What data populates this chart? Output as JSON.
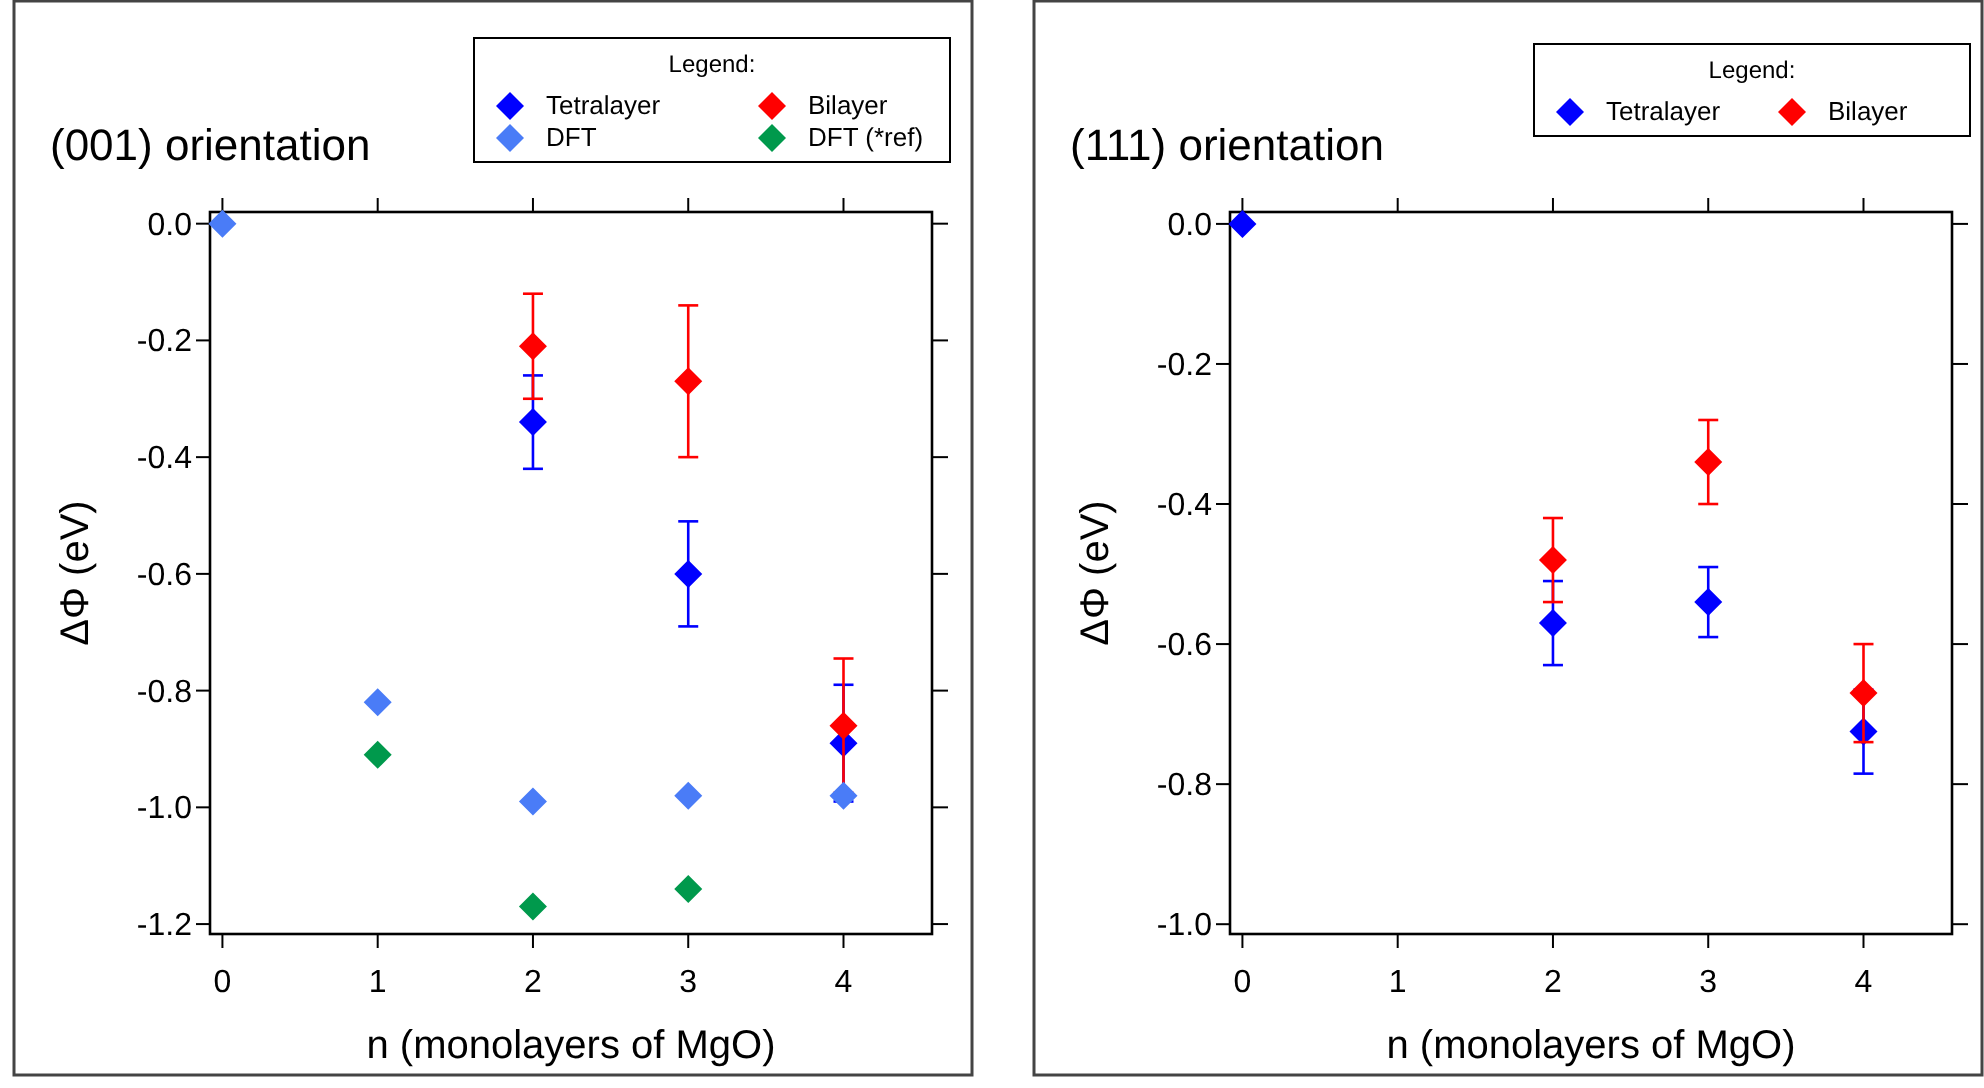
{
  "chart_data": [
    {
      "type": "scatter",
      "title": "(001) orientation",
      "xlabel": "n (monolayers of MgO)",
      "ylabel": "ΔΦ (eV)",
      "legend_title": "Legend:",
      "legend": "top right",
      "marker": "diamond",
      "grid": false,
      "xlim": [
        -0.08,
        4.57
      ],
      "xticks": [
        0,
        1,
        2,
        3,
        4
      ],
      "ylim": [
        -1.217,
        0.02
      ],
      "yticks": [
        {
          "value": 0,
          "label": "0.0"
        },
        {
          "value": -0.2,
          "label": "-0.2"
        },
        {
          "value": -0.4,
          "label": "-0.4"
        },
        {
          "value": -0.6,
          "label": "-0.6"
        },
        {
          "value": -0.8,
          "label": "-0.8"
        },
        {
          "value": -1.0,
          "label": "-1.0"
        },
        {
          "value": -1.2,
          "label": "-1.2"
        }
      ],
      "series": [
        {
          "name": "Tetralayer",
          "color": "#0000ff",
          "x": [
            2,
            3,
            4
          ],
          "values": [
            -0.34,
            -0.6,
            -0.89
          ],
          "errors": [
            0.08,
            0.09,
            0.1
          ]
        },
        {
          "name": "Bilayer",
          "color": "#ff0000",
          "x": [
            2,
            3,
            4
          ],
          "values": [
            -0.21,
            -0.27,
            -0.86
          ],
          "errors": [
            0.09,
            0.13,
            0.115
          ]
        },
        {
          "name": "DFT",
          "color": "#4a7cf7",
          "x": [
            0,
            1,
            2,
            3,
            4
          ],
          "values": [
            0.0,
            -0.82,
            -0.99,
            -0.98,
            -0.98
          ]
        },
        {
          "name": "DFT (*ref)",
          "color": "#00994c",
          "x": [
            1,
            2,
            3
          ],
          "values": [
            -0.91,
            -1.17,
            -1.14
          ]
        }
      ]
    },
    {
      "type": "scatter",
      "title": "(111) orientation",
      "xlabel": "n (monolayers of MgO)",
      "ylabel": "ΔΦ (eV)",
      "legend_title": "Legend:",
      "legend": "top right",
      "marker": "diamond",
      "grid": false,
      "xlim": [
        -0.08,
        4.57
      ],
      "xticks": [
        0,
        1,
        2,
        3,
        4
      ],
      "ylim": [
        -1.014,
        0.017
      ],
      "yticks": [
        {
          "value": 0,
          "label": "0.0"
        },
        {
          "value": -0.2,
          "label": "-0.2"
        },
        {
          "value": -0.4,
          "label": "-0.4"
        },
        {
          "value": -0.6,
          "label": "-0.6"
        },
        {
          "value": -0.8,
          "label": "-0.8"
        },
        {
          "value": -1.0,
          "label": "-1.0"
        }
      ],
      "series": [
        {
          "name": "Tetralayer",
          "color": "#0000ff",
          "x": [
            0,
            2,
            3,
            4
          ],
          "values": [
            0.0,
            -0.57,
            -0.54,
            -0.725
          ],
          "errors": [
            null,
            0.06,
            0.05,
            0.06
          ]
        },
        {
          "name": "Bilayer",
          "color": "#ff0000",
          "x": [
            2,
            3,
            4
          ],
          "values": [
            -0.48,
            -0.34,
            -0.67
          ],
          "errors": [
            0.06,
            0.06,
            0.07
          ]
        }
      ]
    }
  ]
}
